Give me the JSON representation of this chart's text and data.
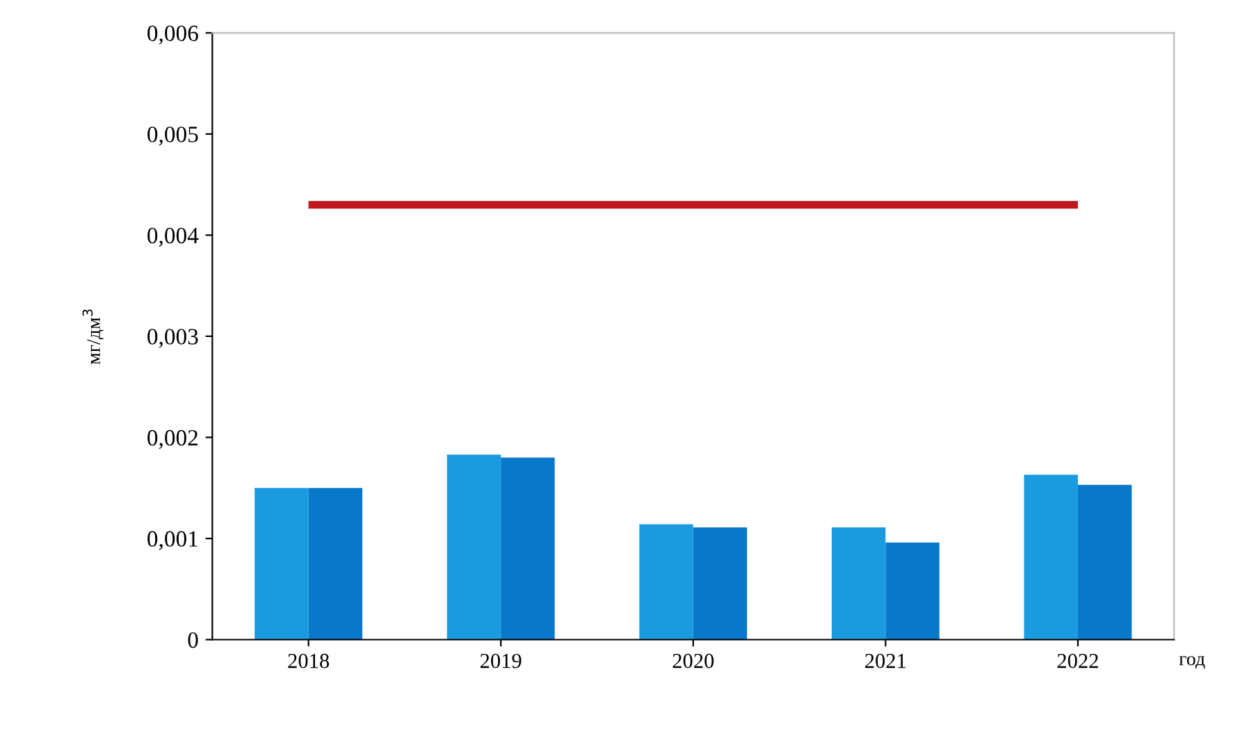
{
  "chart_data": {
    "type": "bar",
    "xlabel": "год",
    "ylabel": "мг/дм$^{3}$",
    "categories": [
      "2018",
      "2019",
      "2020",
      "2021",
      "2022"
    ],
    "series": [
      {
        "color": "#1a9be0",
        "values": [
          0.0015,
          0.00183,
          0.00114,
          0.00111,
          0.00163
        ]
      },
      {
        "color": "#0a78c8",
        "values": [
          0.0015,
          0.0018,
          0.00111,
          0.00096,
          0.00153
        ]
      },
      {
        "type": "line",
        "color": "#c0171c",
        "values": [
          0.0043,
          0.0043,
          0.0043,
          0.0043,
          0.0043
        ]
      }
    ],
    "ylim": [
      0,
      0.006
    ],
    "yticks": [
      {
        "value": 0,
        "label": "0"
      },
      {
        "value": 0.001,
        "label": "0,001"
      },
      {
        "value": 0.002,
        "label": "0,002"
      },
      {
        "value": 0.003,
        "label": "0,003"
      },
      {
        "value": 0.004,
        "label": "0,004"
      },
      {
        "value": 0.005,
        "label": "0,005"
      },
      {
        "value": 0.006,
        "label": "0,006"
      }
    ],
    "grid": false,
    "legend": false
  }
}
